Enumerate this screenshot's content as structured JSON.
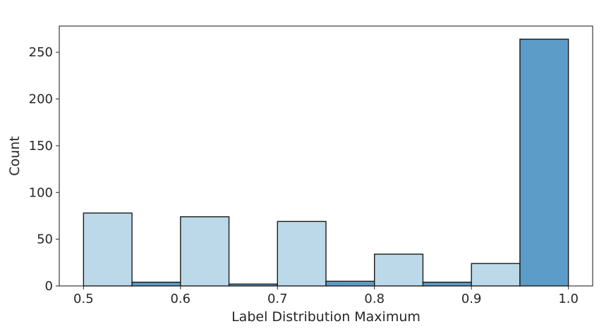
{
  "chart_data": {
    "type": "bar",
    "title": "",
    "xlabel": "Label Distribution Maximum",
    "ylabel": "Count",
    "xlim": [
      0.475,
      1.025
    ],
    "ylim": [
      0,
      278
    ],
    "xticks": [
      0.5,
      0.6,
      0.7,
      0.8,
      0.9,
      1.0
    ],
    "xtick_labels": [
      "0.5",
      "0.6",
      "0.7",
      "0.8",
      "0.9",
      "1.0"
    ],
    "yticks": [
      0,
      50,
      100,
      150,
      200,
      250
    ],
    "ytick_labels": [
      "0",
      "50",
      "100",
      "150",
      "200",
      "250"
    ],
    "grid": false,
    "bins": [
      {
        "x0": 0.5,
        "x1": 0.55,
        "value": 78,
        "color": "#bcd9e9"
      },
      {
        "x0": 0.55,
        "x1": 0.6,
        "value": 4,
        "color": "#5c9cc8"
      },
      {
        "x0": 0.6,
        "x1": 0.65,
        "value": 74,
        "color": "#bcd9e9"
      },
      {
        "x0": 0.65,
        "x1": 0.7,
        "value": 2,
        "color": "#5c9cc8"
      },
      {
        "x0": 0.7,
        "x1": 0.75,
        "value": 69,
        "color": "#bcd9e9"
      },
      {
        "x0": 0.75,
        "x1": 0.8,
        "value": 5,
        "color": "#5c9cc8"
      },
      {
        "x0": 0.8,
        "x1": 0.85,
        "value": 34,
        "color": "#bcd9e9"
      },
      {
        "x0": 0.85,
        "x1": 0.9,
        "value": 4,
        "color": "#5c9cc8"
      },
      {
        "x0": 0.9,
        "x1": 0.95,
        "value": 24,
        "color": "#bcd9e9"
      },
      {
        "x0": 0.95,
        "x1": 1.0,
        "value": 264,
        "color": "#5c9cc8"
      }
    ]
  }
}
